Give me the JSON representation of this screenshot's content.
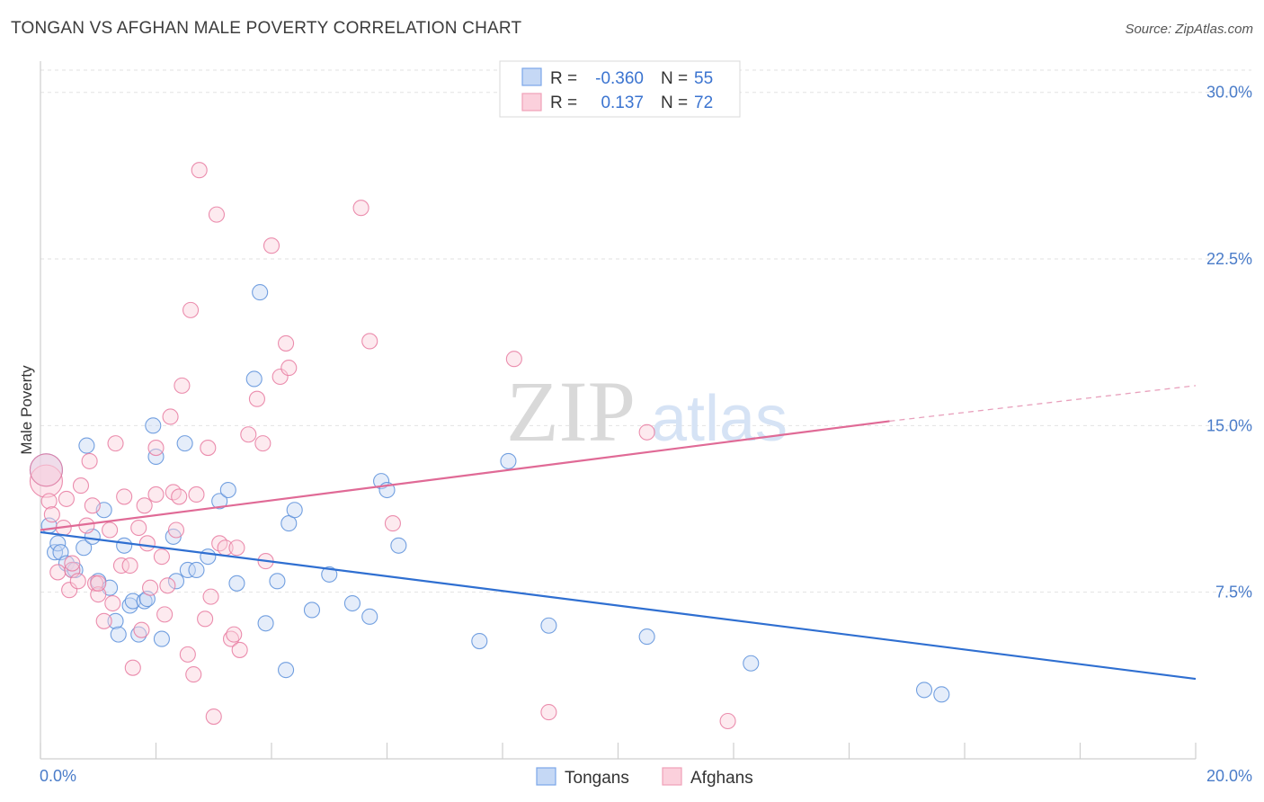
{
  "header": {
    "title": "TONGAN VS AFGHAN MALE POVERTY CORRELATION CHART",
    "source": "Source: ZipAtlas.com"
  },
  "watermark": {
    "zip": "ZIP",
    "atlas": "atlas"
  },
  "legend": {
    "rows": [
      {
        "r_label": "R =",
        "r_value": "-0.360",
        "n_label": "N =",
        "n_value": "55",
        "color": "#7ba7e8",
        "fill": "#c5d8f5"
      },
      {
        "r_label": "R =",
        "r_value": "0.137",
        "n_label": "N =",
        "n_value": "72",
        "color": "#f0a0b8",
        "fill": "#fbd0dc"
      }
    ]
  },
  "chart_data": {
    "type": "scatter",
    "title": "TONGAN VS AFGHAN MALE POVERTY CORRELATION CHART",
    "xlabel": "",
    "ylabel": "Male Poverty",
    "xlim": [
      0,
      20
    ],
    "ylim": [
      0,
      31
    ],
    "x_ticks": [
      0,
      20
    ],
    "x_tick_labels": [
      "0.0%",
      "20.0%"
    ],
    "y_ticks": [
      7.5,
      15,
      22.5,
      30
    ],
    "y_tick_labels": [
      "7.5%",
      "15.0%",
      "22.5%",
      "30.0%"
    ],
    "grid": true,
    "legend_position": "top-center",
    "series": [
      {
        "name": "Tongans",
        "color": "#5b8fdb",
        "fill": "#c5d8f5",
        "trend": {
          "x": [
            0,
            20
          ],
          "y": [
            10.2,
            3.6
          ],
          "dashed_from": null
        },
        "points": [
          [
            0.15,
            10.5
          ],
          [
            0.25,
            9.3
          ],
          [
            0.3,
            9.7
          ],
          [
            0.35,
            9.3
          ],
          [
            0.45,
            8.8
          ],
          [
            0.55,
            8.5
          ],
          [
            0.6,
            8.5
          ],
          [
            0.75,
            9.5
          ],
          [
            0.8,
            14.1
          ],
          [
            0.9,
            10.0
          ],
          [
            1.0,
            8.0
          ],
          [
            1.1,
            11.2
          ],
          [
            1.2,
            7.7
          ],
          [
            1.3,
            6.2
          ],
          [
            1.35,
            5.6
          ],
          [
            1.45,
            9.6
          ],
          [
            1.55,
            6.9
          ],
          [
            1.6,
            7.1
          ],
          [
            1.7,
            5.6
          ],
          [
            1.8,
            7.1
          ],
          [
            1.85,
            7.2
          ],
          [
            1.95,
            15.0
          ],
          [
            2.0,
            13.6
          ],
          [
            2.1,
            5.4
          ],
          [
            2.3,
            10.0
          ],
          [
            2.35,
            8.0
          ],
          [
            2.5,
            14.2
          ],
          [
            2.55,
            8.5
          ],
          [
            2.7,
            8.5
          ],
          [
            2.9,
            9.1
          ],
          [
            3.1,
            11.6
          ],
          [
            3.25,
            12.1
          ],
          [
            3.4,
            7.9
          ],
          [
            3.7,
            17.1
          ],
          [
            3.8,
            21.0
          ],
          [
            3.9,
            6.1
          ],
          [
            4.1,
            8.0
          ],
          [
            4.25,
            4.0
          ],
          [
            4.3,
            10.6
          ],
          [
            4.4,
            11.2
          ],
          [
            4.7,
            6.7
          ],
          [
            5.0,
            8.3
          ],
          [
            5.4,
            7.0
          ],
          [
            5.7,
            6.4
          ],
          [
            5.9,
            12.5
          ],
          [
            6.0,
            12.1
          ],
          [
            6.2,
            9.6
          ],
          [
            7.6,
            5.3
          ],
          [
            8.1,
            13.4
          ],
          [
            8.8,
            6.0
          ],
          [
            10.5,
            5.5
          ],
          [
            12.3,
            4.3
          ],
          [
            15.3,
            3.1
          ],
          [
            15.6,
            2.9
          ],
          [
            0.1,
            13.0
          ]
        ]
      },
      {
        "name": "Afghans",
        "color": "#e87aa0",
        "fill": "#fbd0dc",
        "trend": {
          "x": [
            0,
            14.7
          ],
          "y": [
            10.3,
            15.2
          ],
          "dashed_to": [
            20,
            16.8
          ]
        },
        "points": [
          [
            0.1,
            12.5
          ],
          [
            0.15,
            11.6
          ],
          [
            0.2,
            11.0
          ],
          [
            0.3,
            8.4
          ],
          [
            0.4,
            10.4
          ],
          [
            0.45,
            11.7
          ],
          [
            0.5,
            7.6
          ],
          [
            0.55,
            8.5
          ],
          [
            0.65,
            8.0
          ],
          [
            0.7,
            12.3
          ],
          [
            0.8,
            10.5
          ],
          [
            0.85,
            13.4
          ],
          [
            0.9,
            11.4
          ],
          [
            0.95,
            7.9
          ],
          [
            1.0,
            7.4
          ],
          [
            1.1,
            6.2
          ],
          [
            1.2,
            10.3
          ],
          [
            1.25,
            7.0
          ],
          [
            1.3,
            14.2
          ],
          [
            1.4,
            8.7
          ],
          [
            1.45,
            11.8
          ],
          [
            1.55,
            8.7
          ],
          [
            1.6,
            4.1
          ],
          [
            1.7,
            10.4
          ],
          [
            1.75,
            5.8
          ],
          [
            1.8,
            11.4
          ],
          [
            1.85,
            9.7
          ],
          [
            1.9,
            7.7
          ],
          [
            2.0,
            14.0
          ],
          [
            2.1,
            9.1
          ],
          [
            2.15,
            6.5
          ],
          [
            2.2,
            7.8
          ],
          [
            2.25,
            15.4
          ],
          [
            2.3,
            12.0
          ],
          [
            2.35,
            10.3
          ],
          [
            2.4,
            11.8
          ],
          [
            2.45,
            16.8
          ],
          [
            2.55,
            4.7
          ],
          [
            2.6,
            20.2
          ],
          [
            2.65,
            3.8
          ],
          [
            2.7,
            11.9
          ],
          [
            2.75,
            26.5
          ],
          [
            2.85,
            6.3
          ],
          [
            2.9,
            14.0
          ],
          [
            2.95,
            7.3
          ],
          [
            3.0,
            1.9
          ],
          [
            3.05,
            24.5
          ],
          [
            3.1,
            9.7
          ],
          [
            3.2,
            9.5
          ],
          [
            3.3,
            5.4
          ],
          [
            3.35,
            5.6
          ],
          [
            3.4,
            9.5
          ],
          [
            3.45,
            4.9
          ],
          [
            3.6,
            14.6
          ],
          [
            3.75,
            16.2
          ],
          [
            3.85,
            14.2
          ],
          [
            3.9,
            8.9
          ],
          [
            4.0,
            23.1
          ],
          [
            4.15,
            17.2
          ],
          [
            4.25,
            18.7
          ],
          [
            4.3,
            17.6
          ],
          [
            5.55,
            24.8
          ],
          [
            5.7,
            18.8
          ],
          [
            6.1,
            10.6
          ],
          [
            8.2,
            18.0
          ],
          [
            8.8,
            2.1
          ],
          [
            10.5,
            14.7
          ],
          [
            11.9,
            1.7
          ],
          [
            0.1,
            13.0
          ],
          [
            0.55,
            8.8
          ],
          [
            1.0,
            7.9
          ],
          [
            2.0,
            11.9
          ]
        ]
      }
    ]
  },
  "bottom_legend": {
    "items": [
      {
        "label": "Tongans",
        "color": "#7ba7e8",
        "fill": "#c5d8f5"
      },
      {
        "label": "Afghans",
        "color": "#f0a0b8",
        "fill": "#fbd0dc"
      }
    ]
  }
}
